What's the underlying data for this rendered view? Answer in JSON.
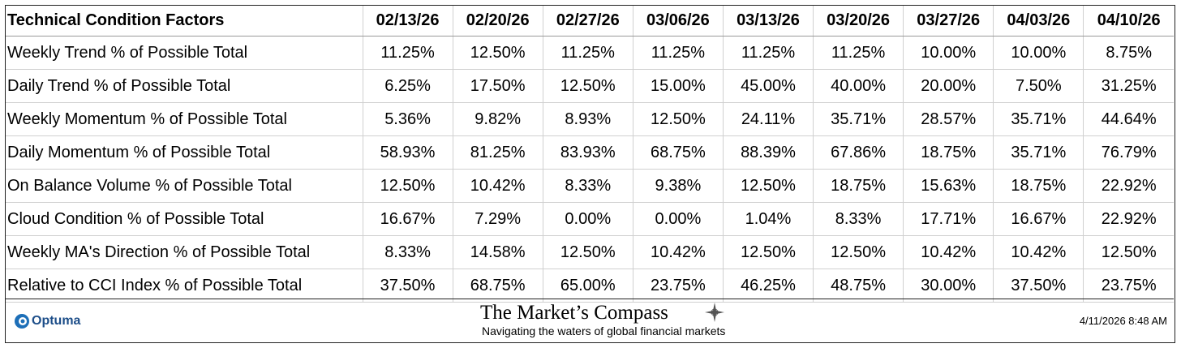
{
  "table": {
    "header": [
      "Technical Condition Factors",
      "02/13/26",
      "02/20/26",
      "02/27/26",
      "03/06/26",
      "03/13/26",
      "03/20/26",
      "03/27/26",
      "04/03/26",
      "04/10/26"
    ],
    "rows": [
      [
        "Weekly Trend % of Possible Total",
        "11.25%",
        "12.50%",
        "11.25%",
        "11.25%",
        "11.25%",
        "11.25%",
        "10.00%",
        "10.00%",
        "8.75%"
      ],
      [
        "Daily Trend % of Possible Total",
        "6.25%",
        "17.50%",
        "12.50%",
        "15.00%",
        "45.00%",
        "40.00%",
        "20.00%",
        "7.50%",
        "31.25%"
      ],
      [
        "Weekly Momentum % of Possible Total",
        "5.36%",
        "9.82%",
        "8.93%",
        "12.50%",
        "24.11%",
        "35.71%",
        "28.57%",
        "35.71%",
        "44.64%"
      ],
      [
        "Daily Momentum % of Possible Total",
        "58.93%",
        "81.25%",
        "83.93%",
        "68.75%",
        "88.39%",
        "67.86%",
        "18.75%",
        "35.71%",
        "76.79%"
      ],
      [
        "On Balance Volume % of Possible Total",
        "12.50%",
        "10.42%",
        "8.33%",
        "9.38%",
        "12.50%",
        "18.75%",
        "15.63%",
        "18.75%",
        "22.92%"
      ],
      [
        "Cloud Condition % of Possible Total",
        "16.67%",
        "7.29%",
        "0.00%",
        "0.00%",
        "1.04%",
        "8.33%",
        "17.71%",
        "16.67%",
        "22.92%"
      ],
      [
        "Weekly MA's Direction % of Possible Total",
        "8.33%",
        "14.58%",
        "12.50%",
        "10.42%",
        "12.50%",
        "12.50%",
        "10.42%",
        "10.42%",
        "12.50%"
      ],
      [
        "Relative to CCI Index % of Possible Total",
        "37.50%",
        "68.75%",
        "65.00%",
        "23.75%",
        "46.25%",
        "48.75%",
        "30.00%",
        "37.50%",
        "23.75%"
      ]
    ]
  },
  "footer": {
    "logo": "Optuma",
    "title": "The Market’s Compass",
    "subtitle": "Navigating the waters of global financial markets",
    "timestamp": "4/11/2026 8:48 AM"
  }
}
